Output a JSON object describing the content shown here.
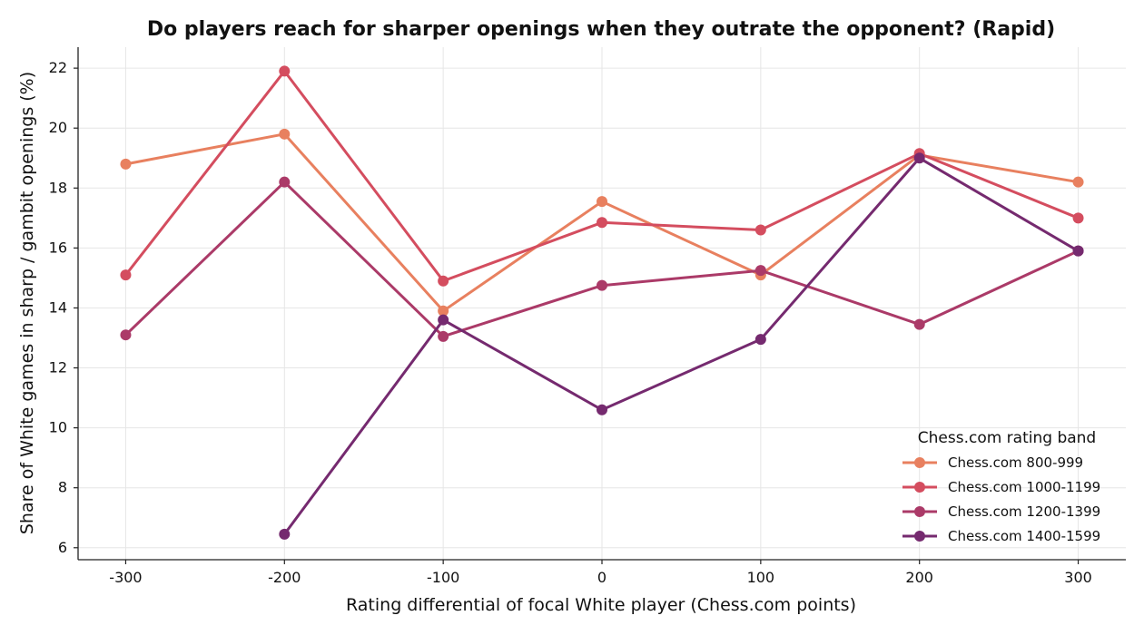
{
  "chart_data": {
    "type": "line",
    "title": "Do players reach for sharper openings when they outrate the opponent? (Rapid)",
    "xlabel": "Rating differential of focal White player (Chess.com points)",
    "ylabel": "Share of White games in sharp / gambit openings (%)",
    "x": [
      -300,
      -200,
      -100,
      0,
      100,
      200,
      300
    ],
    "x_tick_labels": [
      "-300",
      "-200",
      "-100",
      "0",
      "100",
      "200",
      "300"
    ],
    "y_ticks": [
      6,
      8,
      10,
      12,
      14,
      16,
      18,
      20,
      22
    ],
    "y_tick_labels": [
      "6",
      "8",
      "10",
      "12",
      "14",
      "16",
      "18",
      "20",
      "22"
    ],
    "xlim": [
      -330,
      330
    ],
    "ylim": [
      5.6,
      22.7
    ],
    "grid": true,
    "legend": {
      "title": "Chess.com rating band",
      "placement": "lower-right"
    },
    "series": [
      {
        "name": "Chess.com 800-999",
        "color": "#e8805f",
        "values": [
          18.8,
          19.8,
          13.9,
          17.55,
          15.1,
          19.1,
          18.2
        ]
      },
      {
        "name": "Chess.com 1000-1199",
        "color": "#d44d5f",
        "values": [
          15.1,
          21.9,
          14.9,
          16.85,
          16.6,
          19.15,
          17.0
        ]
      },
      {
        "name": "Chess.com 1200-1399",
        "color": "#ab3a68",
        "values": [
          13.1,
          18.2,
          13.05,
          14.75,
          15.25,
          13.45,
          15.9
        ]
      },
      {
        "name": "Chess.com 1400-1599",
        "color": "#752a6f",
        "values": [
          null,
          6.45,
          13.6,
          10.6,
          12.95,
          19.0,
          15.9
        ]
      }
    ]
  }
}
